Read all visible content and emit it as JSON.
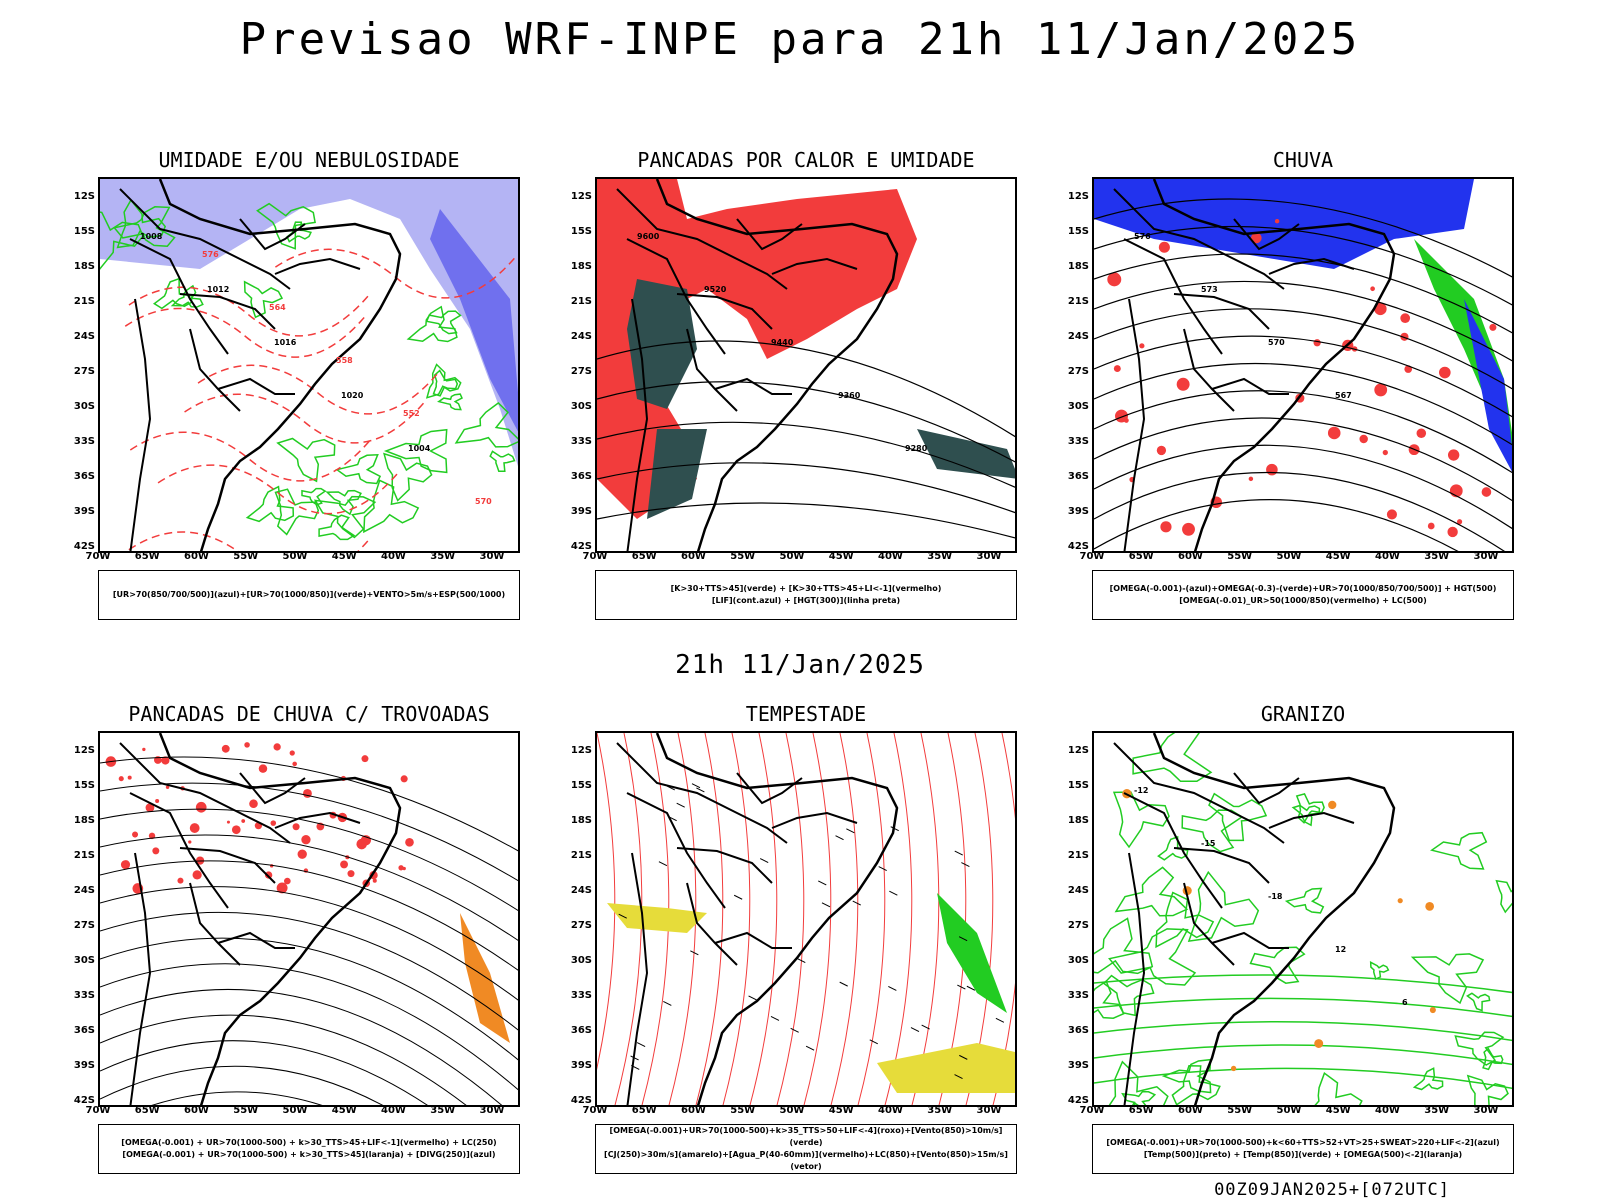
{
  "header": {
    "title": "Previsao WRF-INPE  para 21h 11/Jan/2025",
    "mid_title": "21h 11/Jan/2025",
    "footer": "00Z09JAN2025+[072UTC]"
  },
  "axes": {
    "lat_labels": [
      "12S",
      "15S",
      "18S",
      "21S",
      "24S",
      "27S",
      "30S",
      "33S",
      "36S",
      "39S",
      "42S"
    ],
    "lon_labels": [
      "70W",
      "65W",
      "60W",
      "55W",
      "50W",
      "45W",
      "40W",
      "35W",
      "30W"
    ]
  },
  "colors": {
    "red": "#f23c3c",
    "green": "#22cc22",
    "blue": "#2233ee",
    "lavender": "#b4b4f4",
    "teal": "#2f4f4f",
    "orange": "#f08a24",
    "yellow": "#e6dc3a",
    "purple": "#cc33cc",
    "black": "#000000"
  },
  "panels": [
    {
      "id": "umidade",
      "title": "UMIDADE E/OU NEBULOSIDADE",
      "legend": [
        "[UR>70(850/700/500)](azul)+[UR>70(1000/850)](verde)+VENTO>5m/s+ESP(500/1000)"
      ],
      "contour_labels": [
        "1008",
        "1012",
        "1016",
        "1020",
        "1004",
        "570",
        "576",
        "564",
        "558",
        "552"
      ]
    },
    {
      "id": "pancadas-calor",
      "title": "PANCADAS POR CALOR E UMIDADE",
      "legend": [
        "[K>30+TTS>45](verde) + [K>30+TTS>45+LI<-1](vermelho)",
        "[LIF](cont.azul) + [HGT(300)](linha preta)"
      ],
      "contour_labels": [
        "9600",
        "9520",
        "9440",
        "9360",
        "9280"
      ]
    },
    {
      "id": "chuva",
      "title": "CHUVA",
      "legend": [
        "[OMEGA(-0.001)-(azul)+OMEGA(-0.3)-(verde)+UR>70(1000/850/700/500)] + HGT(500)",
        "[OMEGA(-0.01)_UR>50(1000/850)(vermelho) + LC(500)"
      ],
      "contour_labels": [
        "576",
        "573",
        "570",
        "567"
      ]
    },
    {
      "id": "pancadas-trovoadas",
      "title": "PANCADAS DE CHUVA C/ TROVOADAS",
      "legend": [
        "[OMEGA(-0.001) + UR>70(1000-500) + k>30_TTS>45+LIF<-1](vermelho) + LC(250)",
        "[OMEGA(-0.001) + UR>70(1000-500) + k>30_TTS>45](laranja) + [DIVG(250)](azul)"
      ],
      "contour_labels": []
    },
    {
      "id": "tempestade",
      "title": "TEMPESTADE",
      "legend": [
        "[OMEGA(-0.001)+UR>70(1000-500)+k>35_TTS>50+LIF<-4](roxo)+[Vento(850)>10m/s](verde)",
        "[CJ(250)>30m/s](amarelo)+[Agua_P(40-60mm)](vermelho)+LC(850)+[Vento(850)>15m/s](vetor)"
      ],
      "contour_labels": []
    },
    {
      "id": "granizo",
      "title": "GRANIZO",
      "legend": [
        "[OMEGA(-0.001)+UR>70(1000-500)+k<60+TTS>52+VT>25+SWEAT>220+LIF<-2](azul)",
        "[Temp(500)](preto) + [Temp(850)](verde) + [OMEGA(500)<-2](laranja)"
      ],
      "contour_labels": [
        "-12",
        "-15",
        "-18",
        "12",
        "6"
      ]
    }
  ]
}
